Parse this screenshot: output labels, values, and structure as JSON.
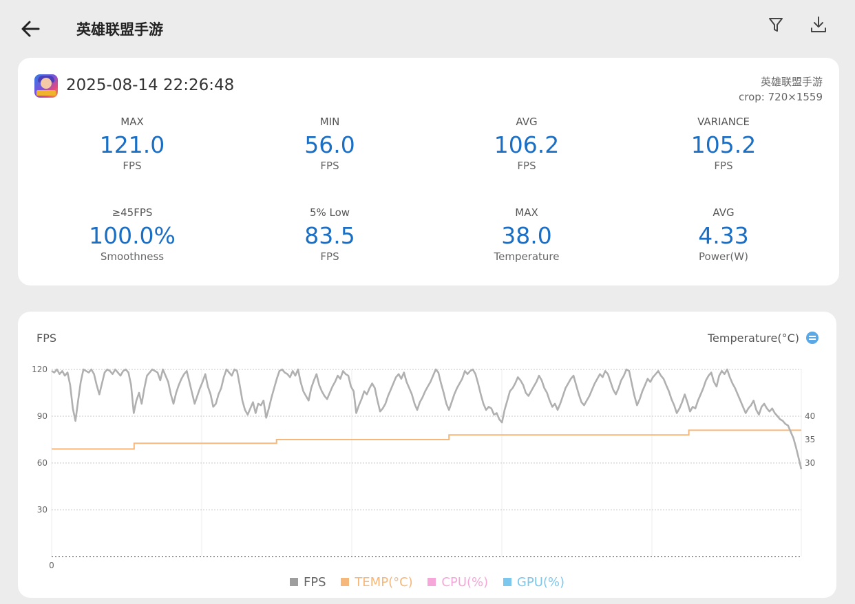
{
  "header": {
    "title": "英雄联盟手游"
  },
  "session": {
    "datetime": "2025-08-14 22:26:48",
    "app_name": "英雄联盟手游",
    "crop": "crop: 720×1559"
  },
  "stats": [
    {
      "label": "MAX",
      "value": "121.0",
      "unit": "FPS"
    },
    {
      "label": "MIN",
      "value": "56.0",
      "unit": "FPS"
    },
    {
      "label": "AVG",
      "value": "106.2",
      "unit": "FPS"
    },
    {
      "label": "VARIANCE",
      "value": "105.2",
      "unit": "FPS"
    },
    {
      "label": "≥45FPS",
      "value": "100.0%",
      "unit": "Smoothness"
    },
    {
      "label": "5% Low",
      "value": "83.5",
      "unit": "FPS"
    },
    {
      "label": "MAX",
      "value": "38.0",
      "unit": "Temperature"
    },
    {
      "label": "AVG",
      "value": "4.33",
      "unit": "Power(W)"
    }
  ],
  "chart": {
    "left_label": "FPS",
    "right_label": "Temperature(°C)",
    "legend": [
      {
        "label": "FPS",
        "color": "#9e9e9e"
      },
      {
        "label": "TEMP(°C)",
        "color": "#f6b77a"
      },
      {
        "label": "CPU(%)",
        "color": "#f4a7d8"
      },
      {
        "label": "GPU(%)",
        "color": "#7cc7ee"
      }
    ]
  },
  "chart_data": {
    "type": "line",
    "xlabel": "",
    "ylabel": "FPS",
    "y2label": "Temperature(°C)",
    "ylim": [
      0,
      120
    ],
    "yticks": [
      0,
      30,
      60,
      90,
      120
    ],
    "y2ticks": [
      30,
      35,
      40
    ],
    "x_tick_labels": [
      "0"
    ],
    "grid": true,
    "legend_position": "bottom",
    "series": [
      {
        "name": "FPS",
        "axis": "left",
        "color": "#b0b0b0",
        "values": [
          119,
          118,
          120,
          117,
          119,
          116,
          118,
          110,
          95,
          87,
          100,
          112,
          120,
          119,
          118,
          120,
          117,
          110,
          104,
          111,
          118,
          120,
          119,
          117,
          120,
          118,
          116,
          119,
          120,
          118,
          110,
          92,
          100,
          105,
          98,
          108,
          116,
          118,
          120,
          119,
          118,
          113,
          120,
          116,
          112,
          104,
          98,
          105,
          110,
          114,
          117,
          119,
          112,
          105,
          98,
          103,
          108,
          112,
          117,
          109,
          104,
          96,
          98,
          104,
          108,
          115,
          120,
          118,
          116,
          120,
          119,
          110,
          100,
          94,
          91,
          95,
          99,
          92,
          98,
          97,
          100,
          89,
          95,
          102,
          108,
          114,
          119,
          120,
          118,
          117,
          115,
          119,
          116,
          120,
          112,
          106,
          103,
          100,
          108,
          113,
          117,
          110,
          106,
          103,
          101,
          105,
          109,
          112,
          116,
          114,
          119,
          117,
          116,
          109,
          106,
          92,
          97,
          101,
          106,
          104,
          108,
          111,
          108,
          100,
          93,
          95,
          98,
          103,
          107,
          111,
          115,
          117,
          114,
          118,
          112,
          108,
          104,
          98,
          94,
          99,
          102,
          106,
          109,
          112,
          116,
          120,
          118,
          111,
          105,
          98,
          94,
          99,
          104,
          108,
          111,
          114,
          119,
          117,
          119,
          120,
          117,
          111,
          104,
          98,
          94,
          96,
          95,
          91,
          92,
          88,
          86,
          94,
          100,
          106,
          108,
          111,
          115,
          113,
          110,
          105,
          103,
          106,
          109,
          112,
          116,
          113,
          108,
          105,
          100,
          96,
          98,
          94,
          98,
          103,
          108,
          111,
          114,
          116,
          110,
          104,
          99,
          97,
          100,
          103,
          107,
          111,
          114,
          117,
          115,
          119,
          117,
          112,
          107,
          104,
          108,
          113,
          116,
          120,
          119,
          111,
          103,
          97,
          101,
          106,
          110,
          114,
          112,
          115,
          117,
          119,
          116,
          114,
          110,
          106,
          101,
          97,
          92,
          95,
          99,
          104,
          99,
          93,
          96,
          95,
          100,
          104,
          108,
          113,
          116,
          118,
          112,
          109,
          116,
          119,
          117,
          120,
          115,
          111,
          108,
          104,
          100,
          96,
          92,
          95,
          97,
          100,
          94,
          91,
          96,
          98,
          95,
          93,
          95,
          92,
          90,
          88,
          87,
          85,
          84,
          80,
          76,
          70,
          63,
          56
        ]
      },
      {
        "name": "TEMP(°C)",
        "axis": "right",
        "color": "#f6b77a",
        "points": [
          [
            0,
            33.0
          ],
          [
            11,
            33.0
          ],
          [
            11,
            34.2
          ],
          [
            30,
            34.2
          ],
          [
            30,
            35.0
          ],
          [
            53,
            35.0
          ],
          [
            53,
            36.0
          ],
          [
            85,
            36.0
          ],
          [
            85,
            37.0
          ],
          [
            100,
            37.0
          ]
        ]
      }
    ]
  }
}
